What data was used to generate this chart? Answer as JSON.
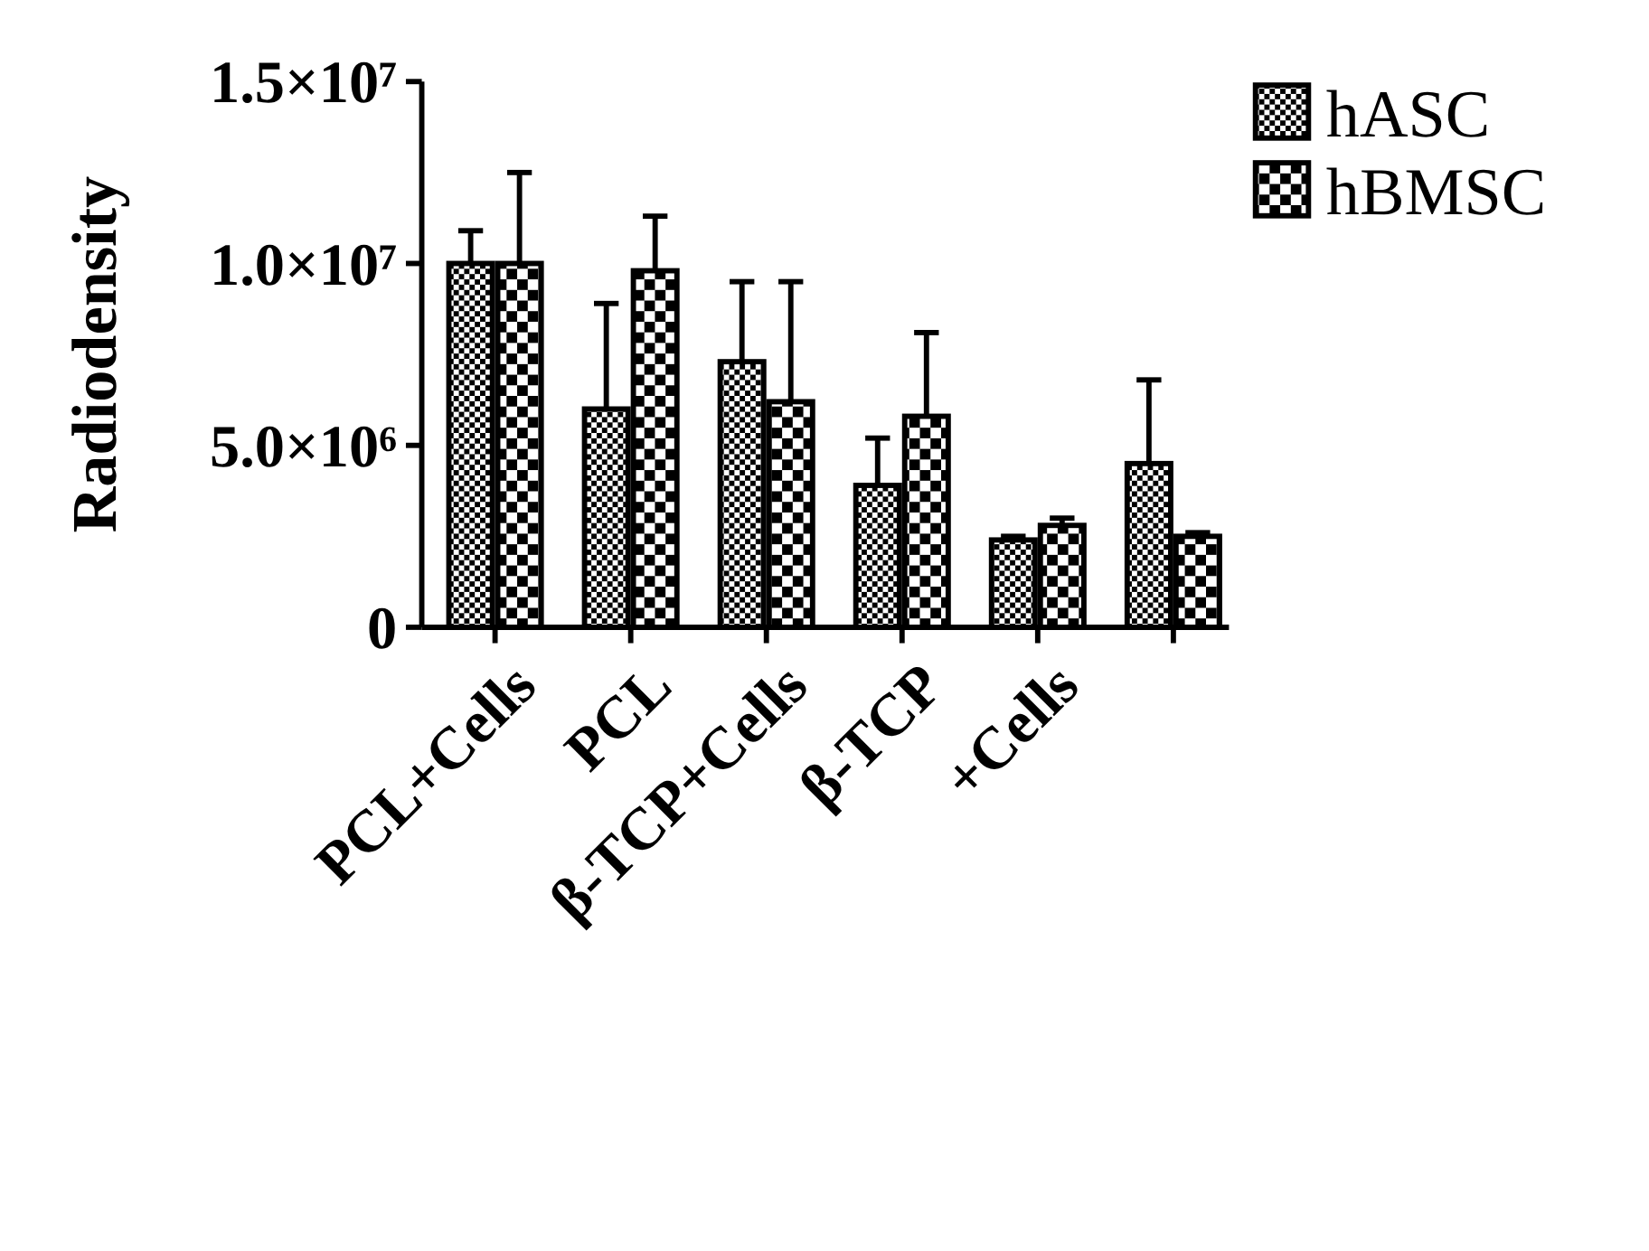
{
  "chart_data": {
    "type": "bar",
    "ylabel": "Radiodensity",
    "categories": [
      "PCL+Cells",
      "PCL",
      "β-TCP+Cells",
      "β-TCP",
      "+Cells",
      null
    ],
    "series": [
      {
        "name": "hASC",
        "color": "#000000",
        "values": [
          10000000,
          6000000,
          7300000,
          3900000,
          2400000,
          4500000
        ],
        "errors": [
          900000,
          2900000,
          2200000,
          1300000,
          100000,
          2300000
        ]
      },
      {
        "name": "hBMSC",
        "color": "#000000",
        "values": [
          10000000,
          9800000,
          6200000,
          5800000,
          2800000,
          2500000
        ],
        "errors": [
          2500000,
          1500000,
          3300000,
          2300000,
          200000,
          100000
        ]
      }
    ],
    "ylim": [
      0,
      15000000
    ],
    "yticks": [
      0,
      {
        "value": 5000000,
        "label": "5.0×10⁶"
      },
      {
        "value": 10000000,
        "label": "1.0×10⁷"
      },
      {
        "value": 15000000,
        "label": "1.5×10⁷"
      }
    ],
    "legend": "top right",
    "grid": false
  }
}
